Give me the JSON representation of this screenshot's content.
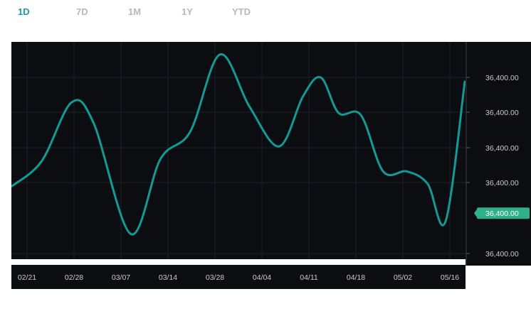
{
  "tabs": [
    {
      "label": "1D",
      "active": true
    },
    {
      "label": "7D",
      "active": false
    },
    {
      "label": "1M",
      "active": false
    },
    {
      "label": "1Y",
      "active": false
    },
    {
      "label": "YTD",
      "active": false
    }
  ],
  "colors": {
    "accent": "#1e9aa8",
    "line": "#139a94",
    "badge": "#2fb089",
    "background": "#0b0d10",
    "grid": "#1d2126",
    "inactive_tab": "#b5b9be"
  },
  "chart_data": {
    "type": "line",
    "title": "",
    "xlabel": "",
    "ylabel": "",
    "grid": true,
    "x_tick_labels": [
      "02/21",
      "02/28",
      "03/07",
      "03/14",
      "03/28",
      "04/04",
      "04/11",
      "04/18",
      "05/02",
      "05/16"
    ],
    "y_tick_labels": [
      "36,400.00",
      "36,400.00",
      "36,400.00",
      "36,400.00",
      "36,400.00"
    ],
    "ylim": [
      0,
      100
    ],
    "current_value_label": "36,400.00",
    "current_value": 20,
    "series": [
      {
        "x": [
          0,
          2,
          4,
          5.5,
          8,
          10,
          12,
          14,
          16,
          18,
          19.6,
          20.8,
          22,
          23.5,
          25,
          26.6,
          28,
          29.2,
          30.5
        ],
        "y": [
          33,
          45,
          73,
          63,
          10,
          46,
          59,
          96,
          71,
          52,
          76,
          85,
          68,
          67,
          40,
          40,
          34,
          16,
          83
        ]
      }
    ]
  }
}
